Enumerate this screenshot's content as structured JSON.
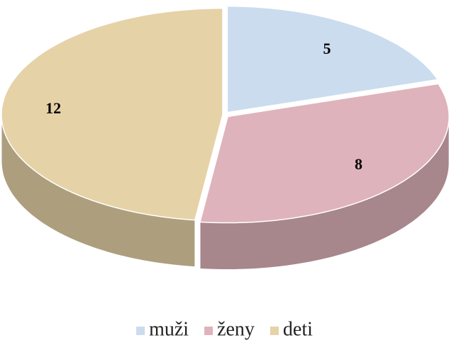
{
  "chart_data": {
    "type": "pie",
    "categories": [
      "muži",
      "ženy",
      "deti"
    ],
    "values": [
      5,
      8,
      12
    ],
    "colors": [
      "#cadcee",
      "#dfb3bb",
      "#e6d2a7"
    ],
    "legend": "bottom"
  }
}
